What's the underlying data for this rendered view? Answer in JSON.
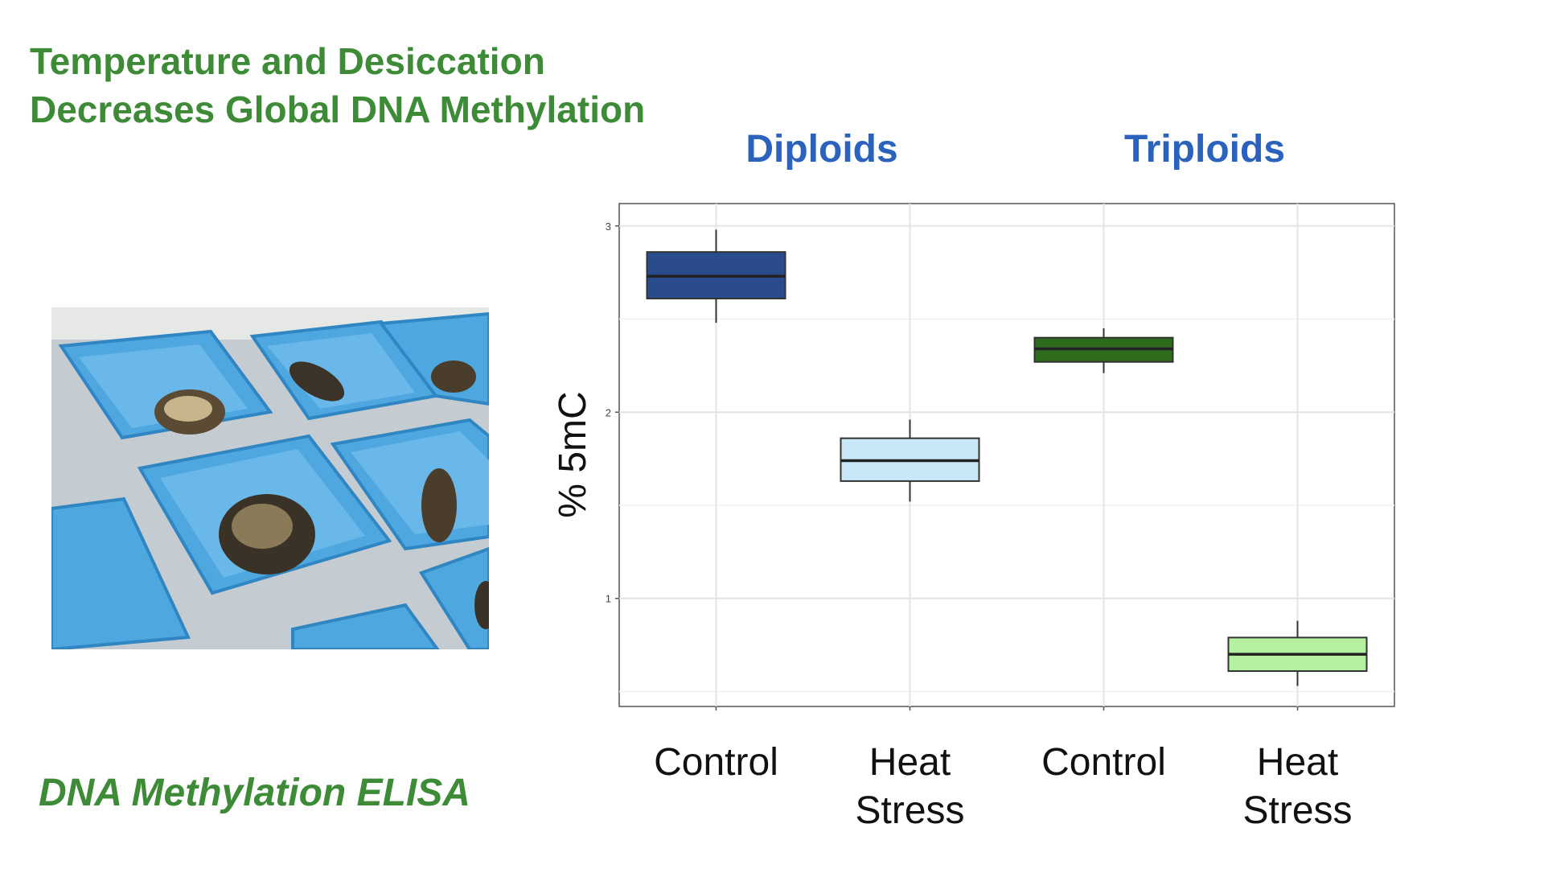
{
  "slide": {
    "title_line1": "Temperature and Desiccation",
    "title_line2": "Decreases Global DNA Methylation",
    "caption": "DNA Methylation ELISA",
    "photo_icon": "oysters-in-blue-trays-photo"
  },
  "groups": [
    "Diploids",
    "Triploids"
  ],
  "chart_data": {
    "type": "box",
    "ylabel": "% 5mC",
    "xlabel": "",
    "ylim": [
      0.42,
      3.12
    ],
    "yticks": [
      1,
      2,
      3
    ],
    "grid": true,
    "categories": [
      {
        "line1": "Control",
        "line2": ""
      },
      {
        "line1": "Heat",
        "line2": "Stress"
      },
      {
        "line1": "Control",
        "line2": ""
      },
      {
        "line1": "Heat",
        "line2": "Stress"
      }
    ],
    "boxes": [
      {
        "group": "Diploids",
        "min": 2.48,
        "q1": 2.61,
        "median": 2.73,
        "q3": 2.86,
        "max": 2.98,
        "color": "#2b4c8c"
      },
      {
        "group": "Diploids",
        "min": 1.52,
        "q1": 1.63,
        "median": 1.74,
        "q3": 1.86,
        "max": 1.96,
        "color": "#c8e8f8"
      },
      {
        "group": "Triploids",
        "min": 2.21,
        "q1": 2.27,
        "median": 2.34,
        "q3": 2.4,
        "max": 2.45,
        "color": "#2e6b1c"
      },
      {
        "group": "Triploids",
        "min": 0.53,
        "q1": 0.61,
        "median": 0.7,
        "q3": 0.79,
        "max": 0.88,
        "color": "#b3f0a0"
      }
    ]
  }
}
